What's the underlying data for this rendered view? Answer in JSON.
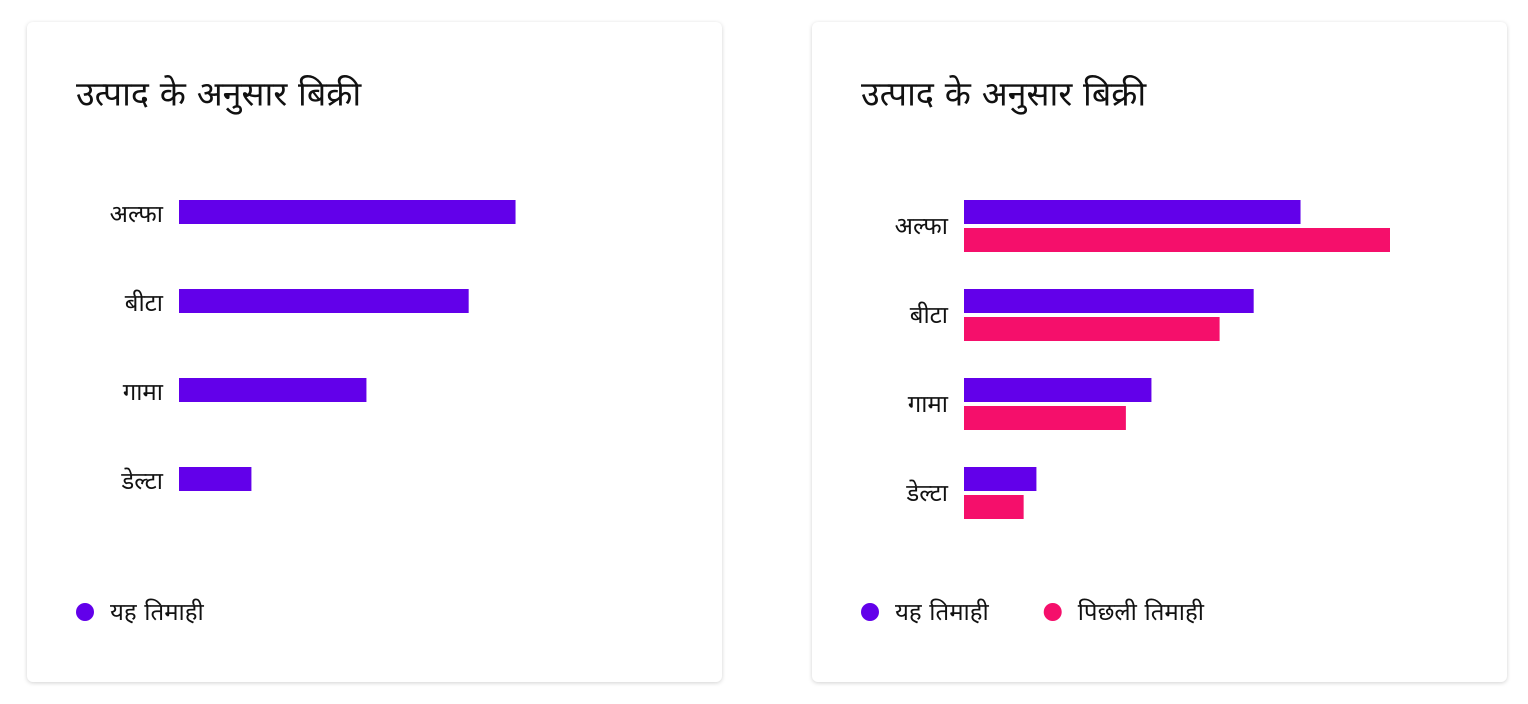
{
  "chart_data": [
    {
      "type": "bar",
      "title": "उत्पाद के अनुसार बिक्री",
      "categories": [
        "अल्फा",
        "बीटा",
        "गामा",
        "डेल्टा"
      ],
      "series": [
        {
          "name": "यह तिमाही",
          "color": "#6200ea",
          "values": [
            79,
            68,
            44,
            17
          ]
        }
      ],
      "xlim": [
        0,
        100
      ]
    },
    {
      "type": "bar",
      "title": "उत्पाद के अनुसार बिक्री",
      "categories": [
        "अल्फा",
        "बीटा",
        "गामा",
        "डेल्टा"
      ],
      "series": [
        {
          "name": "यह तिमाही",
          "color": "#6200ea",
          "values": [
            79,
            68,
            44,
            17
          ]
        },
        {
          "name": "पिछली तिमाही",
          "color": "#f50f6b",
          "values": [
            100,
            60,
            38,
            14
          ]
        }
      ],
      "xlim": [
        0,
        100
      ]
    }
  ]
}
